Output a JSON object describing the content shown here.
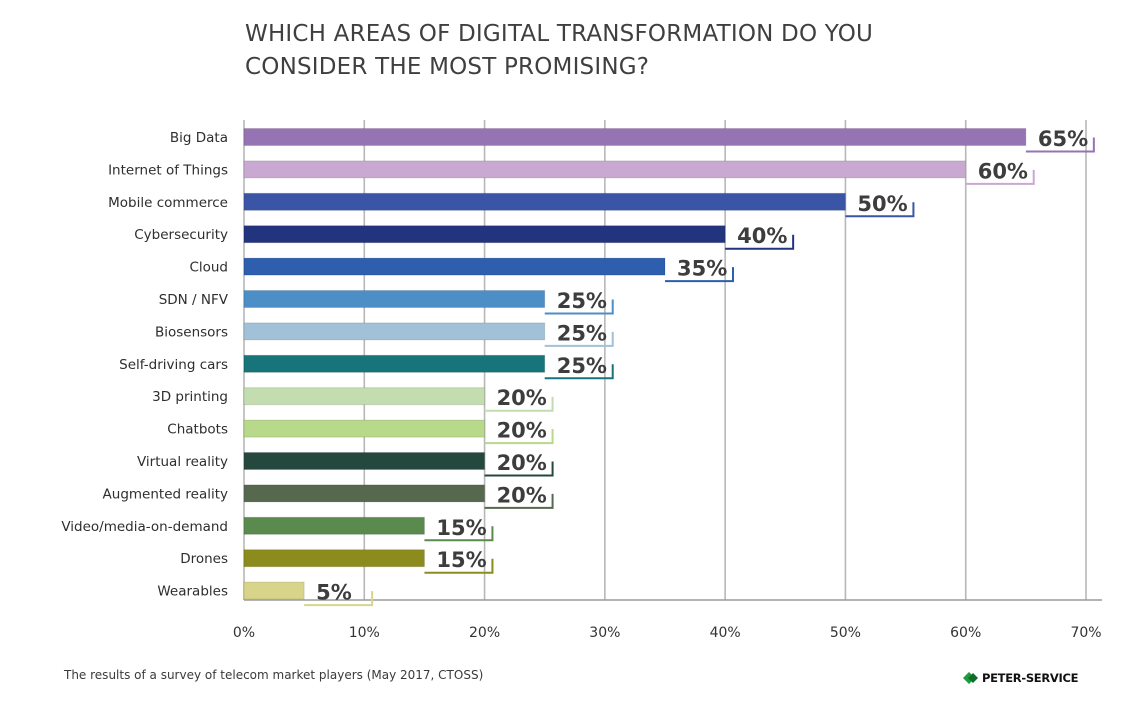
{
  "title_lines": [
    "WHICH AREAS OF DIGITAL TRANSFORMATION DO YOU",
    "CONSIDER THE MOST PROMISING?"
  ],
  "chart_data": {
    "type": "bar",
    "orientation": "horizontal",
    "title": "WHICH AREAS OF DIGITAL TRANSFORMATION DO YOU CONSIDER THE MOST PROMISING?",
    "xlabel": "",
    "ylabel": "",
    "xlim": [
      0,
      70
    ],
    "x_ticks": [
      "0%",
      "10%",
      "20%",
      "30%",
      "40%",
      "50%",
      "60%",
      "70%"
    ],
    "grid": "vertical",
    "legend": "none",
    "categories": [
      "Big Data",
      "Internet of Things",
      "Mobile commerce",
      "Cybersecurity",
      "Cloud",
      "SDN / NFV",
      "Biosensors",
      "Self-driving cars",
      "3D printing",
      "Chatbots",
      "Virtual reality",
      "Augmented reality",
      "Video/media-on-demand",
      "Drones",
      "Wearables"
    ],
    "values": [
      65,
      60,
      50,
      40,
      35,
      25,
      25,
      25,
      20,
      20,
      20,
      20,
      15,
      15,
      5
    ],
    "data_labels": [
      "65%",
      "60%",
      "50%",
      "40%",
      "35%",
      "25%",
      "25%",
      "25%",
      "20%",
      "20%",
      "20%",
      "20%",
      "15%",
      "15%",
      "5%"
    ],
    "colors": [
      "#9673b2",
      "#c9a8d2",
      "#3b55a6",
      "#22347d",
      "#2d5fae",
      "#4d8ec6",
      "#a0c1d8",
      "#16747a",
      "#c3dcb0",
      "#b8d88a",
      "#24473e",
      "#56684e",
      "#5a8a4e",
      "#8b8b1e",
      "#d8d58a"
    ]
  },
  "footer": {
    "source": "The results of a survey of telecom market players (May 2017, CTOSS)",
    "brand": "PETER-SERVICE",
    "brand_color": "#1f9a3c"
  }
}
